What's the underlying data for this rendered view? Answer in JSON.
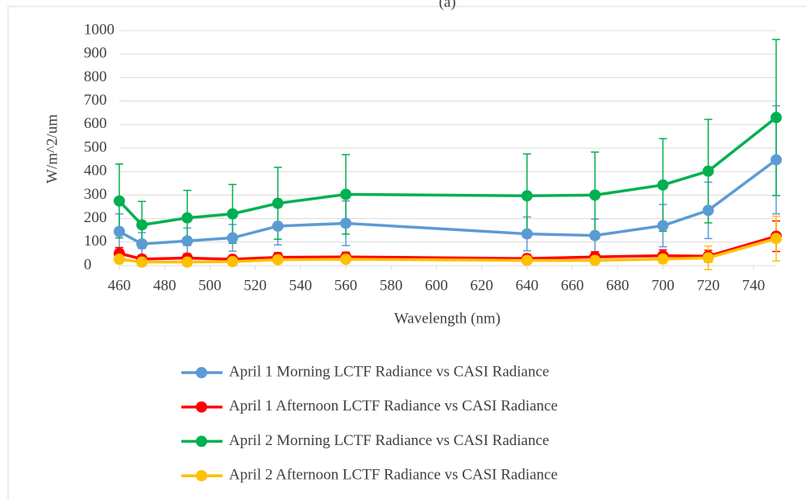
{
  "chart_data": {
    "type": "line",
    "title": "(a)",
    "x_label": "Wavelength (nm)",
    "y_label": "W/m^2/um",
    "x": [
      460,
      470,
      490,
      510,
      530,
      560,
      640,
      670,
      700,
      720,
      750
    ],
    "xlim": [
      460,
      750
    ],
    "xticks": [
      460,
      480,
      500,
      520,
      540,
      560,
      580,
      600,
      620,
      640,
      660,
      680,
      700,
      720,
      740
    ],
    "ylim": [
      0,
      1000
    ],
    "yticks": [
      0,
      100,
      200,
      300,
      400,
      500,
      600,
      700,
      800,
      900,
      1000
    ],
    "grid": true,
    "legend": "bottom",
    "series": [
      {
        "name": "April 1 Morning LCTF Radiance vs CASI Radiance",
        "color": "#5b9bd5",
        "values": [
          145,
          92,
          105,
          118,
          168,
          180,
          135,
          128,
          170,
          235,
          450
        ],
        "errors": [
          75,
          48,
          55,
          57,
          80,
          95,
          72,
          70,
          90,
          120,
          230
        ]
      },
      {
        "name": "April 1 Afternoon LCTF Radiance vs CASI Radiance",
        "color": "#ff0000",
        "values": [
          52,
          28,
          32,
          27,
          35,
          37,
          30,
          37,
          42,
          40,
          125
        ],
        "errors": [
          25,
          15,
          18,
          15,
          20,
          20,
          18,
          22,
          25,
          25,
          65
        ]
      },
      {
        "name": "April 2 Morning LCTF Radiance vs CASI Radiance",
        "color": "#00b050",
        "values": [
          275,
          173,
          203,
          220,
          265,
          303,
          297,
          300,
          343,
          402,
          630
        ],
        "errors": [
          157,
          100,
          117,
          125,
          153,
          169,
          178,
          183,
          197,
          220,
          332
        ]
      },
      {
        "name": "April 2 Afternoon LCTF Radiance vs CASI Radiance",
        "color": "#ffc000",
        "values": [
          27,
          15,
          15,
          17,
          25,
          27,
          22,
          22,
          28,
          33,
          115
        ],
        "errors": [
          15,
          10,
          10,
          10,
          14,
          15,
          12,
          12,
          18,
          50,
          95
        ]
      }
    ]
  }
}
